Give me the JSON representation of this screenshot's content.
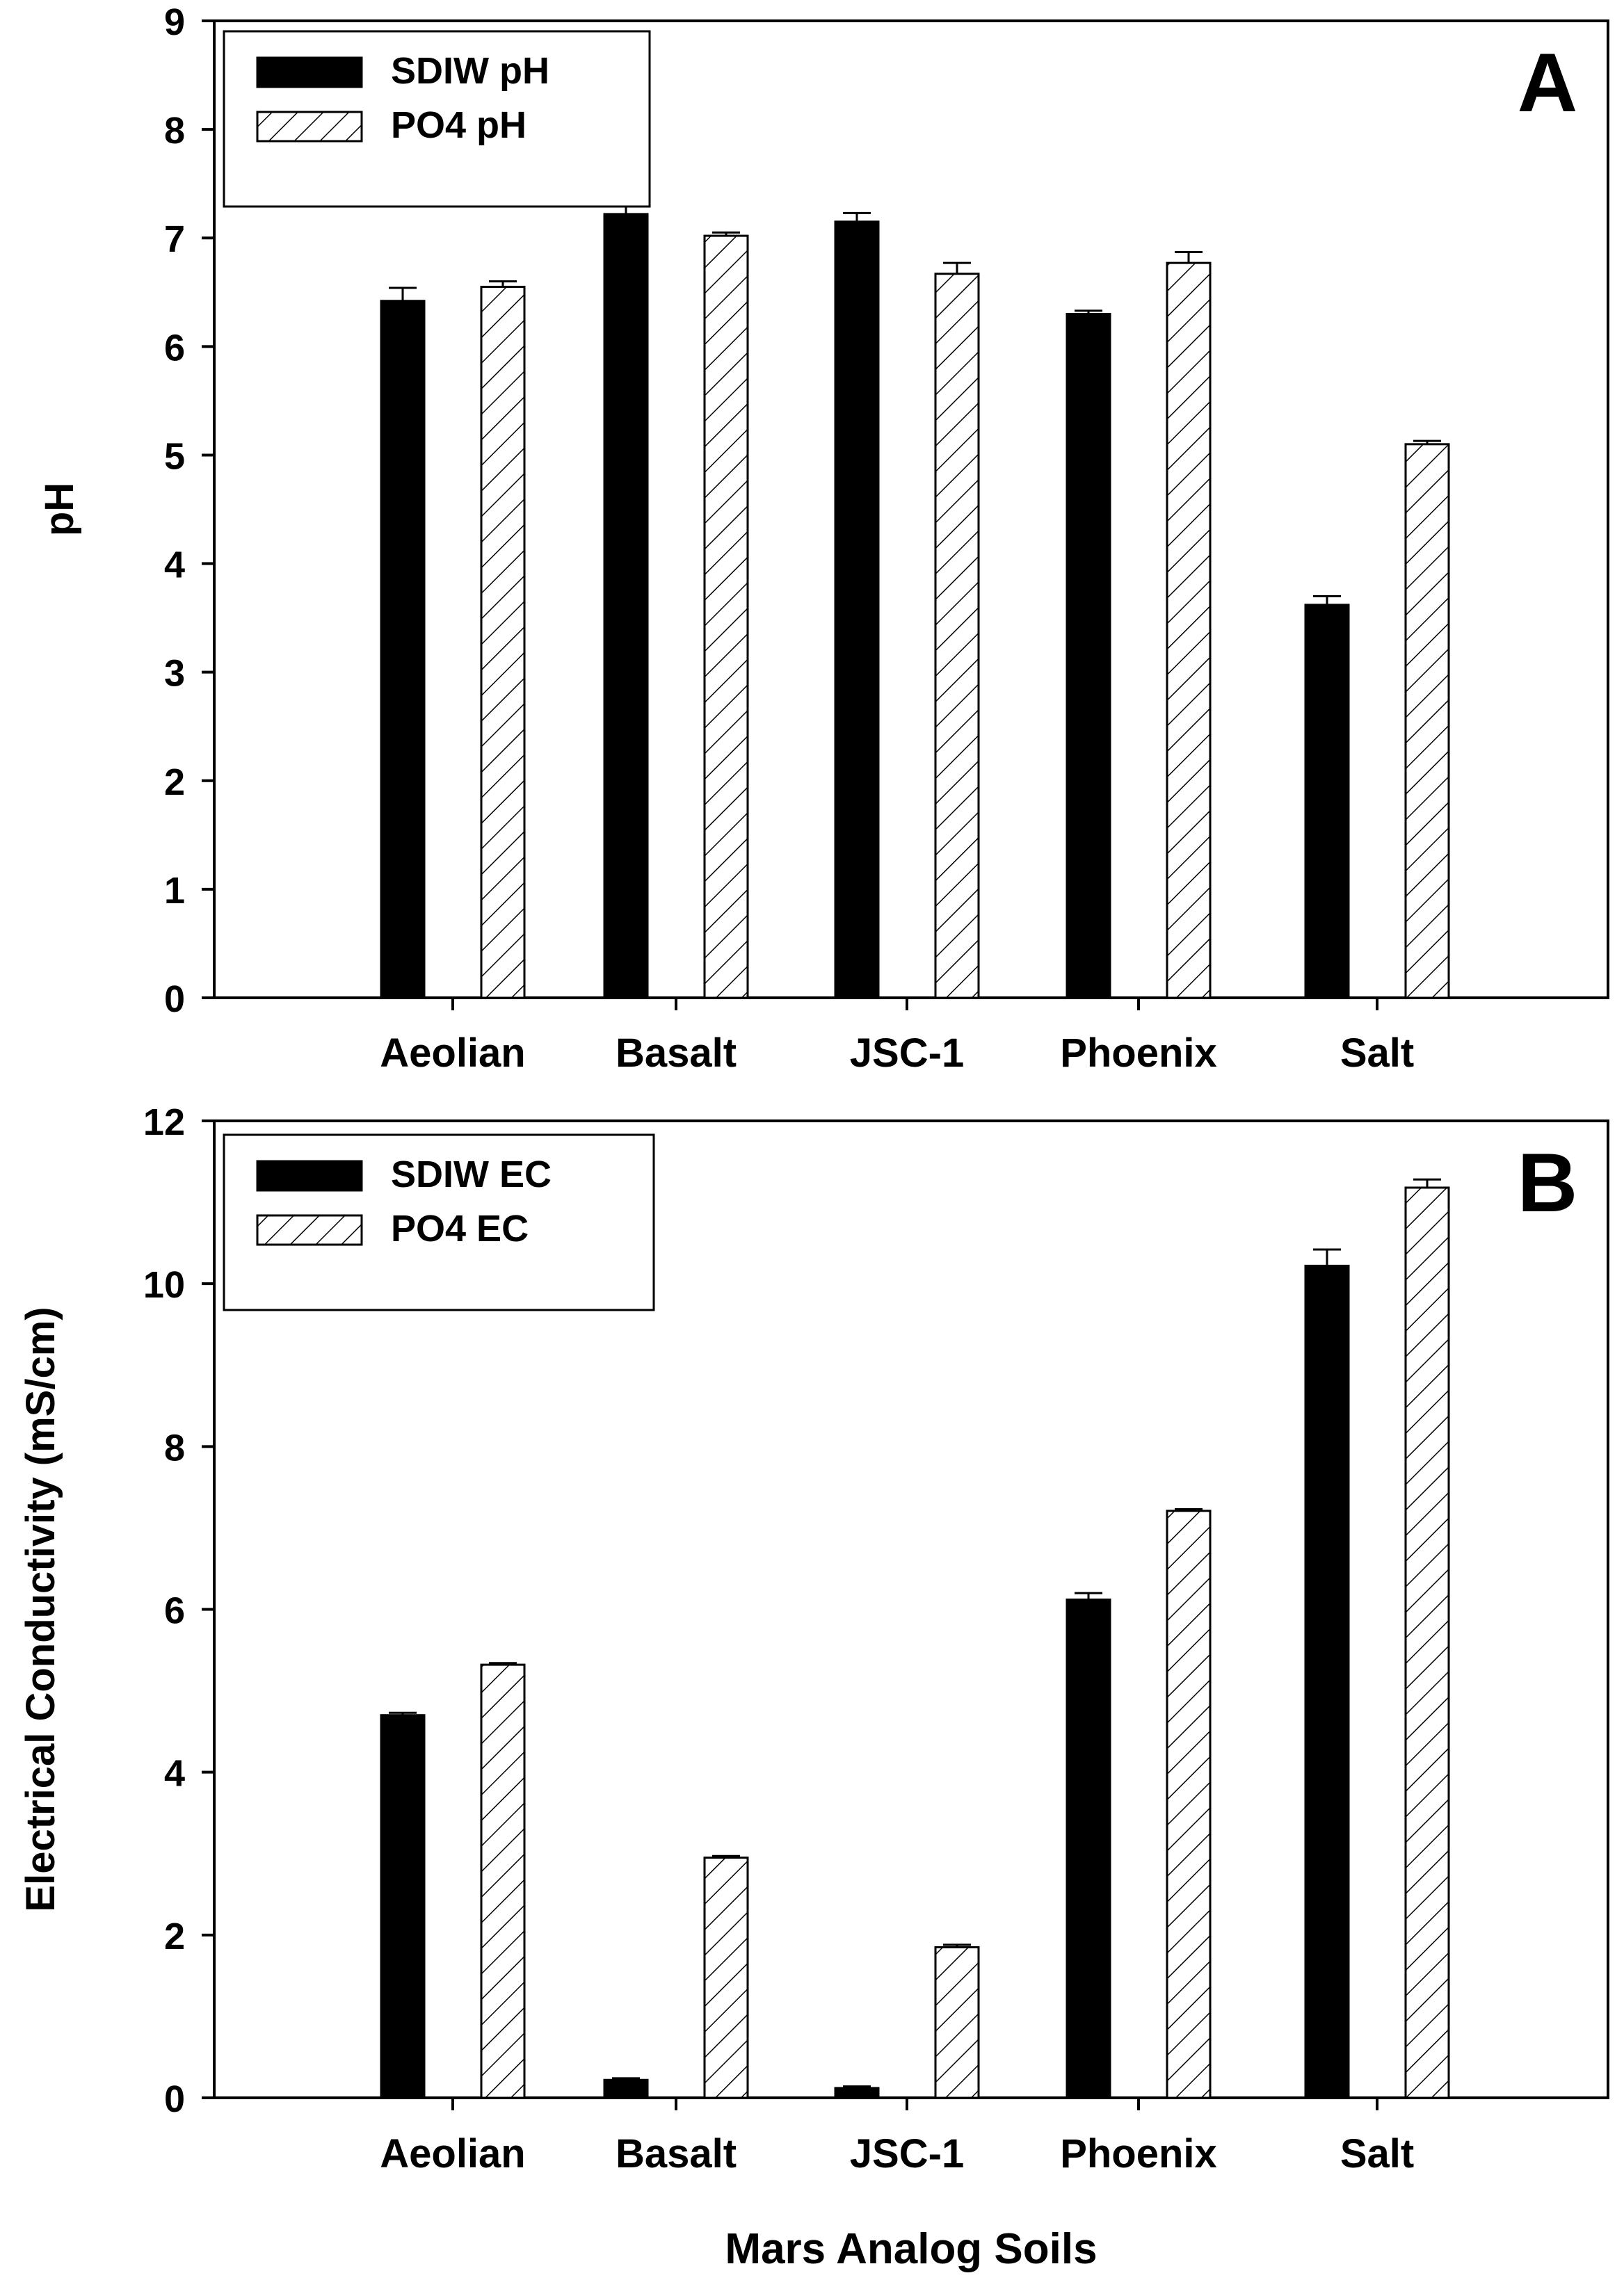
{
  "colors": {
    "axis": "#000000",
    "sdiw_fill": "#000000",
    "po4_fill": "#ffffff",
    "hatch": "#000000",
    "background": "#ffffff"
  },
  "figure": {
    "xlabel": "Mars Analog Soils"
  },
  "chart_data": [
    {
      "type": "bar",
      "panel_label": "A",
      "title": "",
      "xlabel": "",
      "ylabel": "pH",
      "ylim": [
        0,
        9
      ],
      "yticks": [
        "0",
        "1",
        "2",
        "3",
        "4",
        "5",
        "6",
        "7",
        "8",
        "9"
      ],
      "categories": [
        "Aeolian",
        "Basalt",
        "JSC-1",
        "Phoenix",
        "Salt"
      ],
      "series": [
        {
          "name": "SDIW  pH",
          "pattern": "solid",
          "values": [
            6.42,
            7.22,
            7.15,
            6.3,
            3.62
          ],
          "errors": [
            0.12,
            0.08,
            0.08,
            0.03,
            0.08
          ]
        },
        {
          "name": "PO4  pH",
          "pattern": "hatched",
          "values": [
            6.55,
            7.02,
            6.67,
            6.77,
            5.1
          ],
          "errors": [
            0.05,
            0.03,
            0.1,
            0.1,
            0.03
          ]
        }
      ],
      "legend_position": "top-left"
    },
    {
      "type": "bar",
      "panel_label": "B",
      "title": "",
      "xlabel": "Mars Analog Soils",
      "ylabel": "Electrical Conductivity (mS/cm)",
      "ylim": [
        0,
        12
      ],
      "yticks": [
        "0",
        "2",
        "4",
        "6",
        "8",
        "10",
        "12"
      ],
      "categories": [
        "Aeolian",
        "Basalt",
        "JSC-1",
        "Phoenix",
        "Salt"
      ],
      "series": [
        {
          "name": "SDIW  EC",
          "pattern": "solid",
          "values": [
            4.7,
            0.22,
            0.12,
            6.12,
            10.22
          ],
          "errors": [
            0.03,
            0.02,
            0.02,
            0.08,
            0.2
          ]
        },
        {
          "name": "PO4  EC",
          "pattern": "hatched",
          "values": [
            5.32,
            2.95,
            1.85,
            7.21,
            11.18
          ],
          "errors": [
            0.02,
            0.02,
            0.03,
            0.02,
            0.1
          ]
        }
      ],
      "legend_position": "top-left"
    }
  ]
}
